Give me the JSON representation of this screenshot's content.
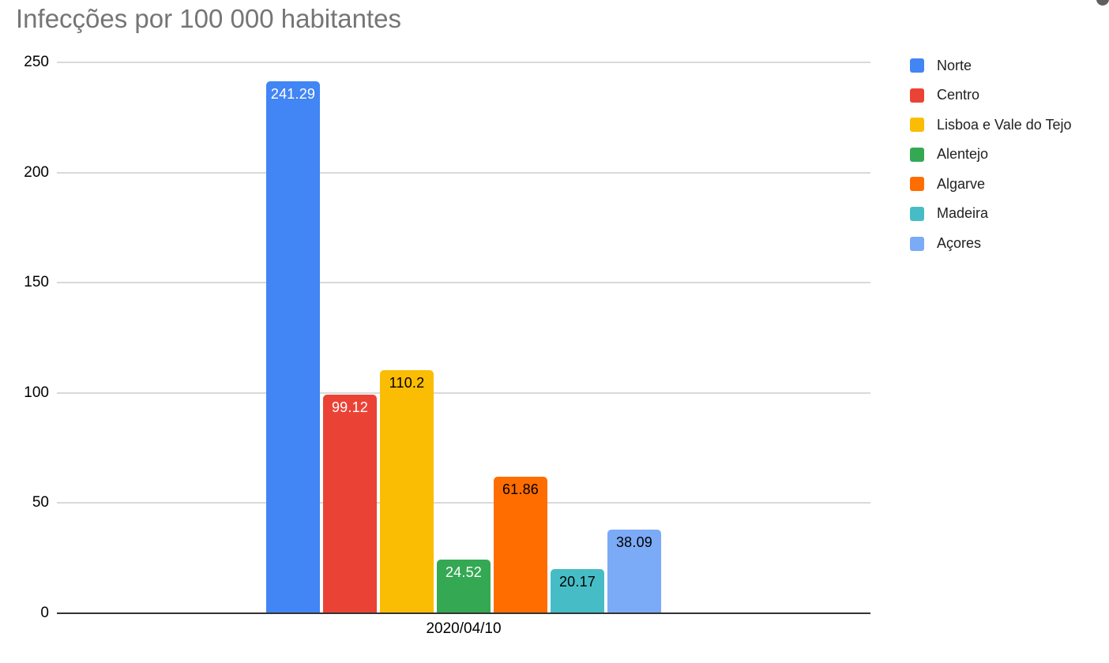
{
  "chart_data": {
    "type": "bar",
    "title": "Infecções por 100 000 habitantes",
    "categories": [
      "2020/04/10"
    ],
    "xlabel": "2020/04/10",
    "ylabel": "",
    "ylim": [
      0,
      250
    ],
    "y_ticks": [
      0,
      50,
      100,
      150,
      200,
      250
    ],
    "grid": true,
    "legend_position": "right",
    "series": [
      {
        "name": "Norte",
        "value": 241.29,
        "label": "241.29",
        "color": "#4285F4",
        "label_color": "#ffffff"
      },
      {
        "name": "Centro",
        "value": 99.12,
        "label": "99.12",
        "color": "#EA4335",
        "label_color": "#ffffff"
      },
      {
        "name": "Lisboa e Vale do Tejo",
        "value": 110.2,
        "label": "110.2",
        "color": "#FBBC04",
        "label_color": "#000000"
      },
      {
        "name": "Alentejo",
        "value": 24.52,
        "label": "24.52",
        "color": "#34A853",
        "label_color": "#ffffff"
      },
      {
        "name": "Algarve",
        "value": 61.86,
        "label": "61.86",
        "color": "#FF6D01",
        "label_color": "#000000"
      },
      {
        "name": "Madeira",
        "value": 20.17,
        "label": "20.17",
        "color": "#46BDC6",
        "label_color": "#000000"
      },
      {
        "name": "Açores",
        "value": 38.09,
        "label": "38.09",
        "color": "#7BAAF7",
        "label_color": "#000000"
      }
    ],
    "colors": {
      "grid": "#d9d9d9",
      "axis": "#333333",
      "title_text": "#757575"
    }
  }
}
